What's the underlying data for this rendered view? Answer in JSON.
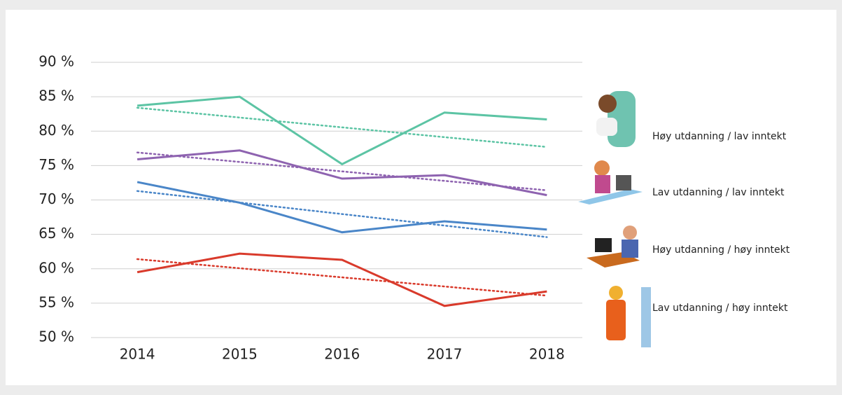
{
  "chart_data": {
    "type": "line",
    "categories": [
      "2014",
      "2015",
      "2016",
      "2017",
      "2018"
    ],
    "series": [
      {
        "name": "Høy utdanning / lav inntekt",
        "color": "#5cc4a4",
        "values": [
          83.7,
          85.0,
          75.2,
          82.7,
          81.7
        ],
        "trend": [
          83.4,
          77.7
        ]
      },
      {
        "name": "Lav utdanning / lav inntekt",
        "color": "#8e63b0",
        "values": [
          75.9,
          77.2,
          73.1,
          73.6,
          70.7
        ],
        "trend": [
          76.9,
          71.4
        ]
      },
      {
        "name": "Høy utdanning / høy inntekt",
        "color": "#4a86c8",
        "values": [
          72.6,
          69.6,
          65.3,
          66.9,
          65.7
        ],
        "trend": [
          71.3,
          64.6
        ]
      },
      {
        "name": "Lav utdanning / høy inntekt",
        "color": "#d93a2b",
        "values": [
          59.5,
          62.2,
          61.3,
          54.6,
          56.7
        ],
        "trend": [
          61.4,
          56.1
        ]
      }
    ],
    "ylim": [
      50,
      90
    ],
    "yticks": [
      {
        "value": 50,
        "label": "50 %"
      },
      {
        "value": 55,
        "label": "55 %"
      },
      {
        "value": 60,
        "label": "60 %"
      },
      {
        "value": 65,
        "label": "65 %"
      },
      {
        "value": 70,
        "label": "70 %"
      },
      {
        "value": 75,
        "label": "75 %"
      },
      {
        "value": 80,
        "label": "80 %"
      },
      {
        "value": 85,
        "label": "85 %"
      },
      {
        "value": 90,
        "label": "90 %"
      }
    ],
    "grid": true
  }
}
